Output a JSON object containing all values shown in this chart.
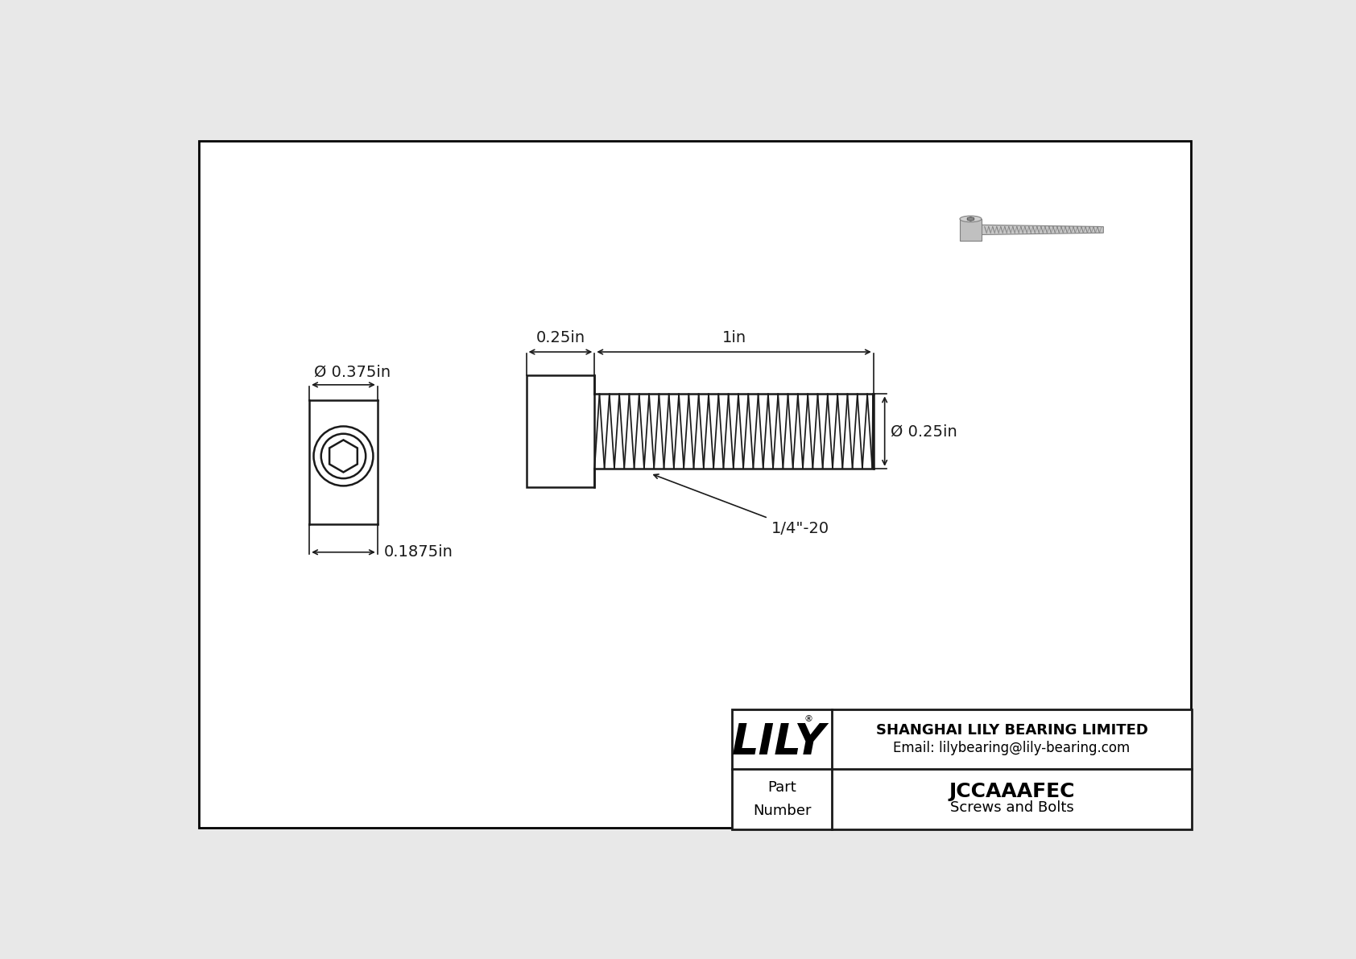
{
  "bg_color": "#e8e8e8",
  "drawing_bg": "#ffffff",
  "border_color": "#000000",
  "line_color": "#1a1a1a",
  "title_company": "SHANGHAI LILY BEARING LIMITED",
  "title_email": "Email: lilybearing@lily-bearing.com",
  "part_number": "JCCAAAFEC",
  "part_category": "Screws and Bolts",
  "part_label": "Part\nNumber",
  "lily_text": "LILY",
  "lily_reg": "®",
  "dim_head_dia": "Ø 0.375in",
  "dim_head_depth": "0.1875in",
  "dim_shank_len": "0.25in",
  "dim_thread_len": "1in",
  "dim_thread_dia": "Ø 0.25in",
  "dim_thread_spec": "1/4\"-20",
  "font_size_dim": 14,
  "font_size_part": 18,
  "font_size_lily": 38,
  "font_size_company": 13
}
